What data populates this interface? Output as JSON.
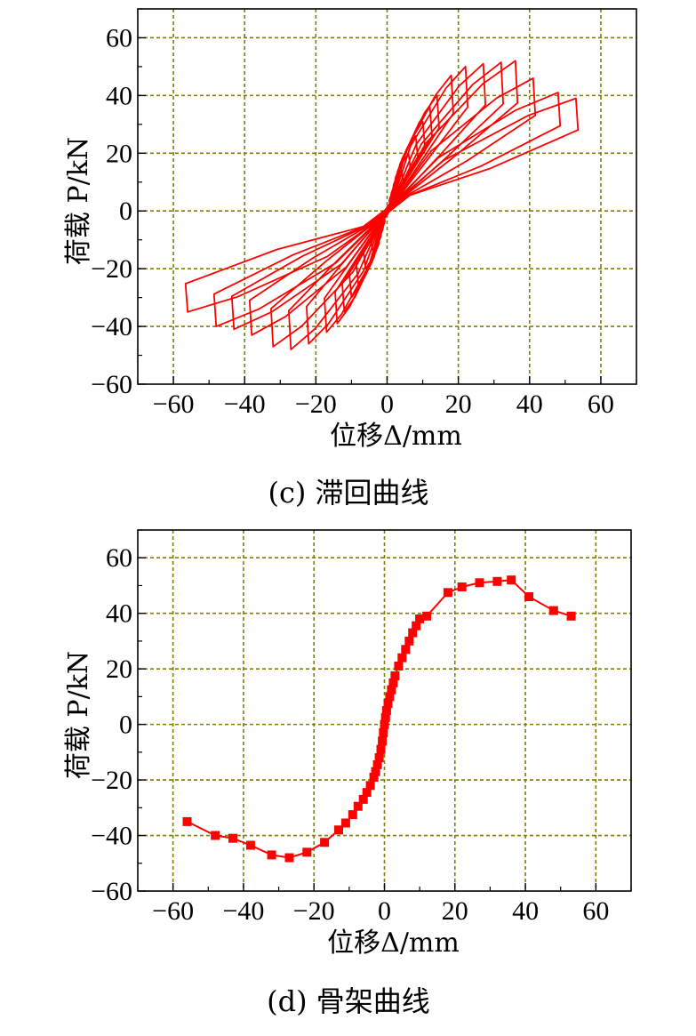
{
  "chart_data": [
    {
      "type": "line",
      "caption": "(c) 滞回曲线",
      "xlabel": "位移Δ/mm",
      "ylabel": "荷载 P/kN",
      "xlim": [
        -70,
        70
      ],
      "ylim": [
        -60,
        70
      ],
      "xticks": [
        "−60",
        "−40",
        "−20",
        "0",
        "20",
        "40",
        "60"
      ],
      "yticks": [
        "−60",
        "−40",
        "−20",
        "0",
        "20",
        "40",
        "60"
      ],
      "grid": true,
      "line_color": "#ff0000",
      "loops": [
        {
          "peak_pos": [
            2,
            8
          ],
          "peak_neg": [
            -2,
            -8
          ]
        },
        {
          "peak_pos": [
            4,
            14
          ],
          "peak_neg": [
            -4,
            -14
          ]
        },
        {
          "peak_pos": [
            6,
            20
          ],
          "peak_neg": [
            -6,
            -20
          ]
        },
        {
          "peak_pos": [
            8,
            26
          ],
          "peak_neg": [
            -8,
            -26
          ]
        },
        {
          "peak_pos": [
            10,
            31
          ],
          "peak_neg": [
            -10,
            -30
          ]
        },
        {
          "peak_pos": [
            12,
            36
          ],
          "peak_neg": [
            -12,
            -35
          ]
        },
        {
          "peak_pos": [
            14,
            40
          ],
          "peak_neg": [
            -14,
            -39
          ]
        },
        {
          "peak_pos": [
            18,
            47
          ],
          "peak_neg": [
            -17,
            -42
          ]
        },
        {
          "peak_pos": [
            22,
            50
          ],
          "peak_neg": [
            -22,
            -46
          ]
        },
        {
          "peak_pos": [
            27,
            51
          ],
          "peak_neg": [
            -27,
            -48
          ]
        },
        {
          "peak_pos": [
            32,
            51.5
          ],
          "peak_neg": [
            -32,
            -47
          ]
        },
        {
          "peak_pos": [
            36,
            52
          ],
          "peak_neg": [
            -38,
            -43
          ]
        },
        {
          "peak_pos": [
            41,
            46
          ],
          "peak_neg": [
            -43,
            -41
          ]
        },
        {
          "peak_pos": [
            48,
            41
          ],
          "peak_neg": [
            -48,
            -40
          ]
        },
        {
          "peak_pos": [
            53,
            39
          ],
          "peak_neg": [
            -56,
            -35
          ]
        }
      ]
    },
    {
      "type": "line",
      "caption": "(d) 骨架曲线",
      "xlabel": "位移Δ/mm",
      "ylabel": "荷载 P/kN",
      "xlim": [
        -70,
        70
      ],
      "ylim": [
        -60,
        70
      ],
      "xticks": [
        "−60",
        "−40",
        "−20",
        "0",
        "20",
        "40",
        "60"
      ],
      "yticks": [
        "−60",
        "−40",
        "−20",
        "0",
        "20",
        "40",
        "60"
      ],
      "grid": true,
      "line_color": "#ff0000",
      "marker": "square",
      "x": [
        -56,
        -48,
        -43,
        -38,
        -32,
        -27,
        -22,
        -17,
        -13,
        -11,
        -9,
        -7.5,
        -6,
        -5,
        -4,
        -3,
        -2.5,
        -2,
        -1.5,
        -1,
        -0.6,
        -0.3,
        0,
        0.3,
        0.6,
        1,
        1.5,
        2,
        2.5,
        3,
        4,
        5,
        6,
        7,
        8,
        9,
        10,
        12,
        18,
        22,
        27,
        32,
        36,
        41,
        48,
        53
      ],
      "y": [
        -35,
        -40,
        -41,
        -43.5,
        -47,
        -48,
        -46,
        -42.5,
        -38,
        -35.5,
        -32.5,
        -29.5,
        -27,
        -24.5,
        -22,
        -19,
        -17,
        -14.5,
        -12,
        -9,
        -6,
        -3,
        0,
        2.5,
        5,
        7.5,
        10,
        12.5,
        15,
        17.5,
        21,
        24,
        27,
        30,
        33,
        35.5,
        38,
        39,
        47.5,
        49.5,
        51,
        51.5,
        52,
        46,
        41,
        39
      ]
    }
  ]
}
